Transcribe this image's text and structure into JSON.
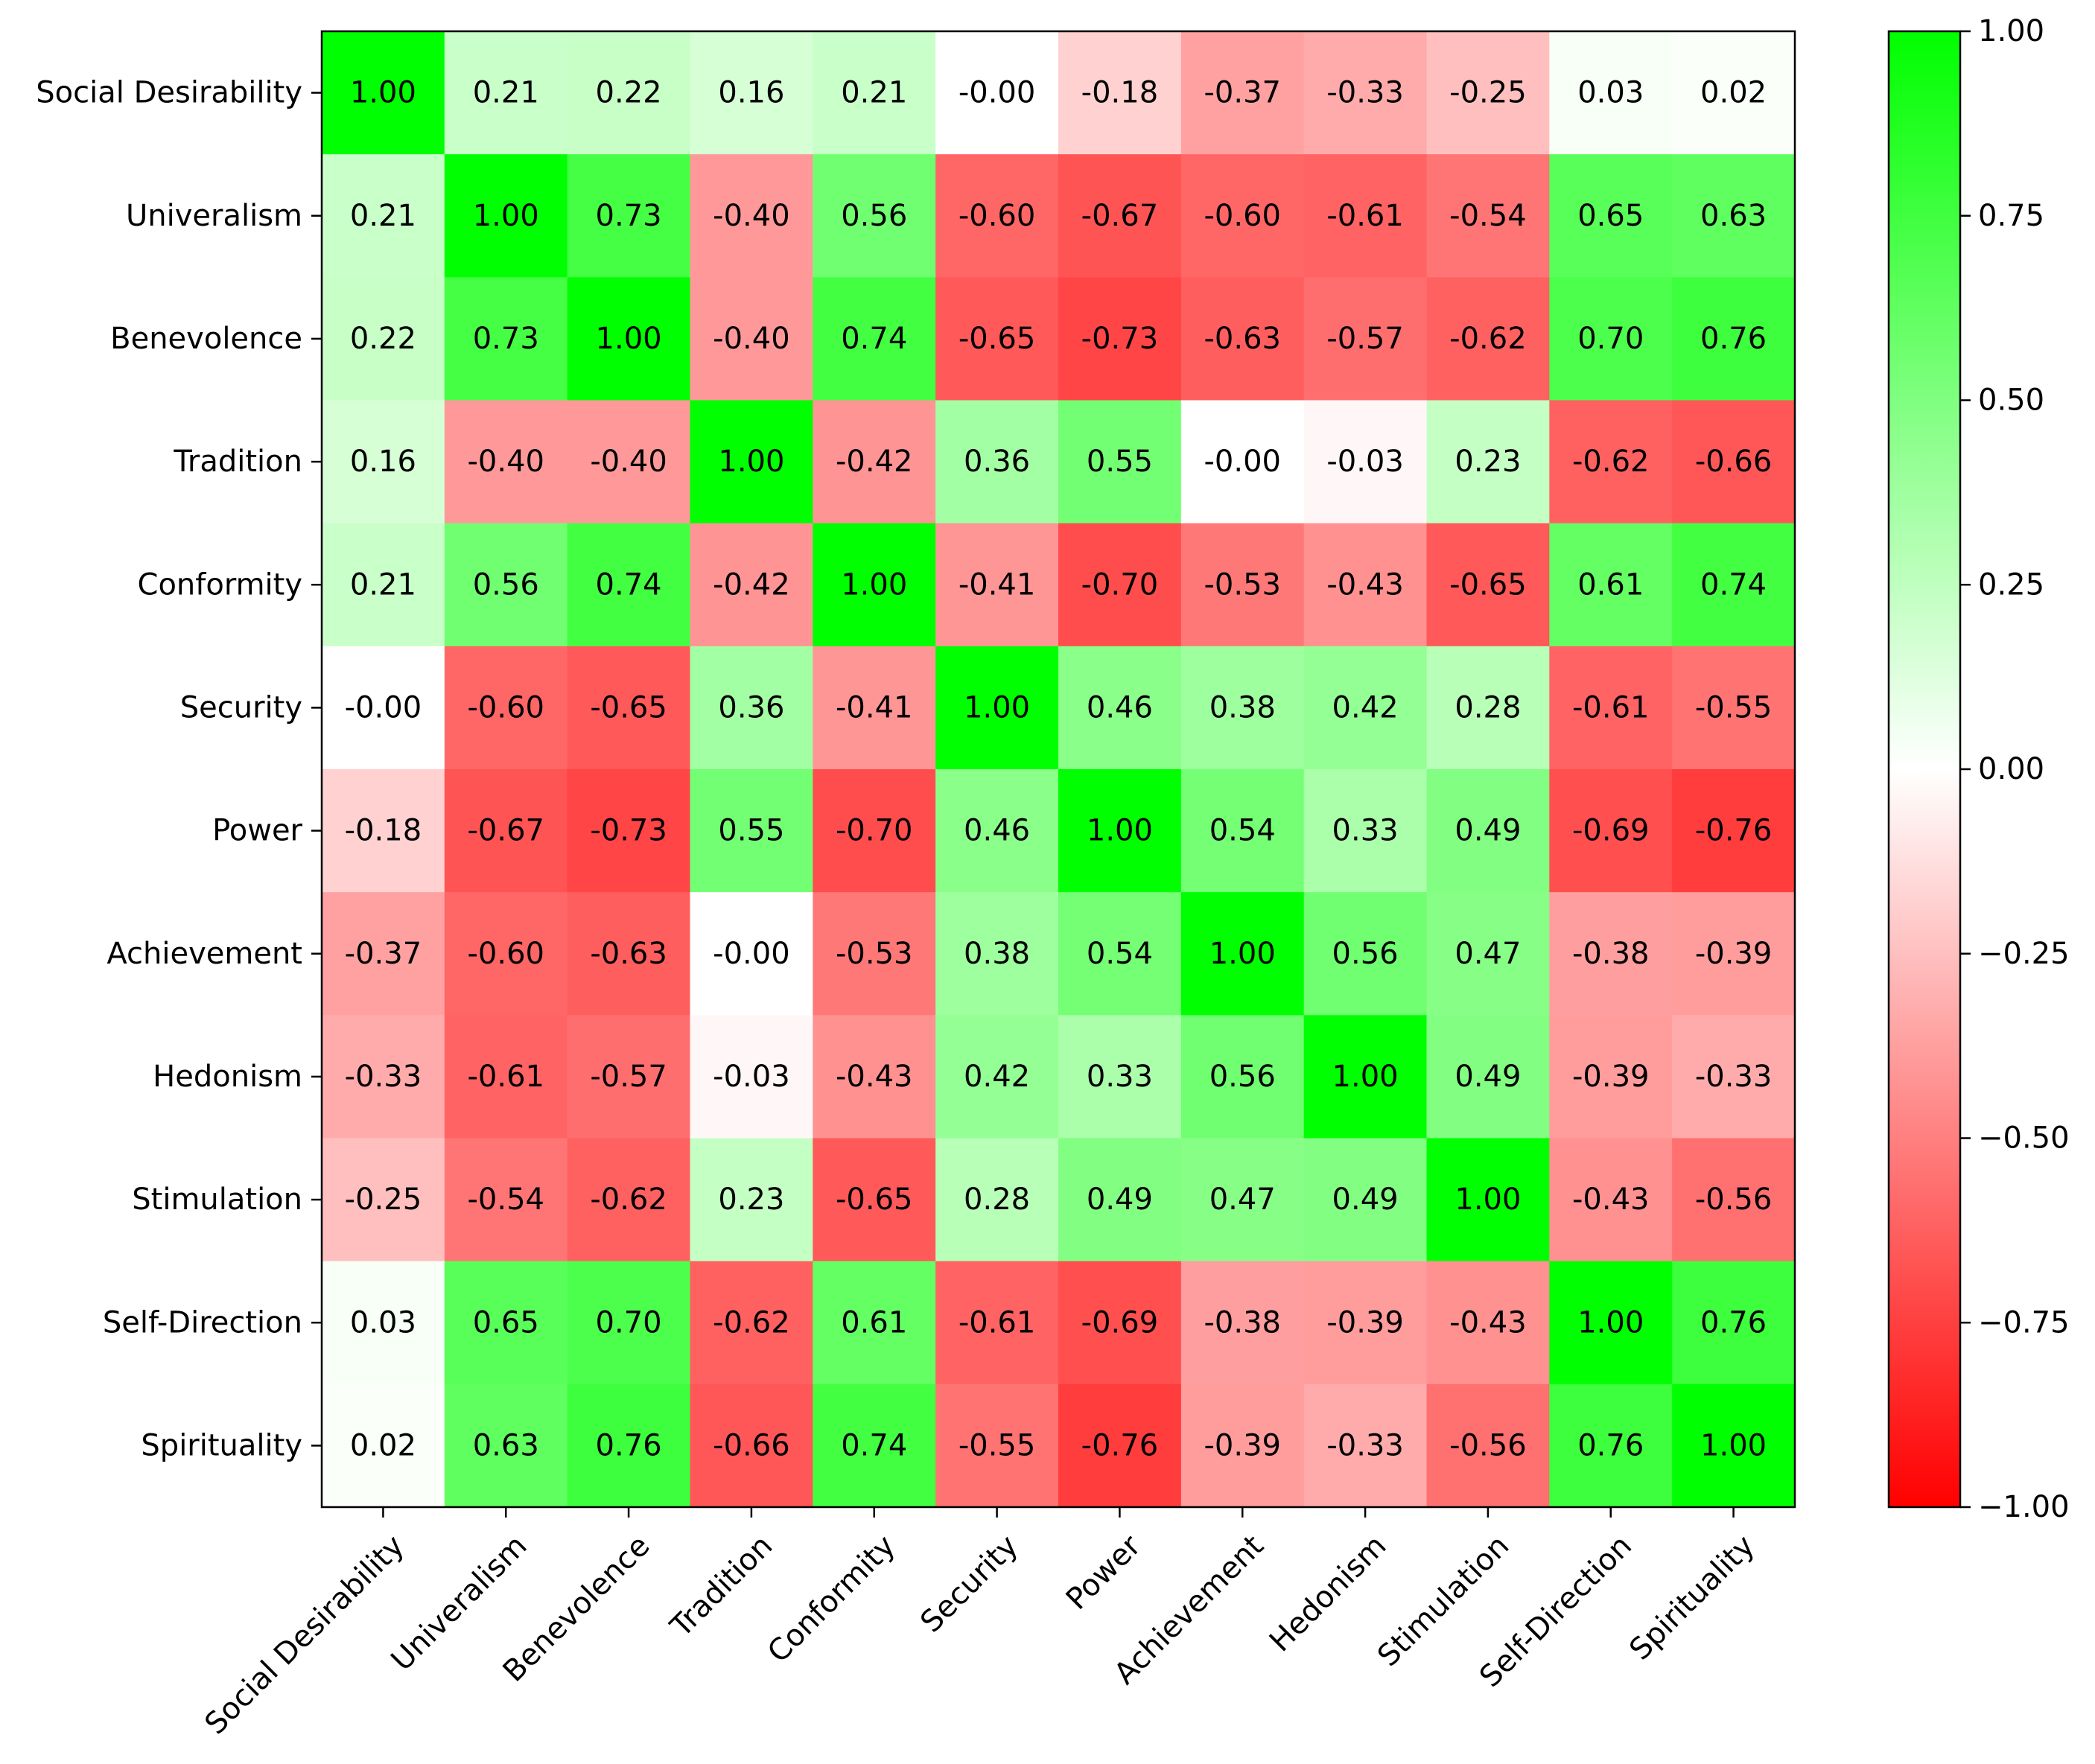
{
  "chart_data": {
    "type": "heatmap",
    "title": "",
    "xlabel": "",
    "ylabel": "",
    "row_labels": [
      "Social Desirability",
      "Univeralism",
      "Benevolence",
      "Tradition",
      "Conformity",
      "Security",
      "Power",
      "Achievement",
      "Hedonism",
      "Stimulation",
      "Self-Direction",
      "Spirituality"
    ],
    "col_labels": [
      "Social Desirability",
      "Univeralism",
      "Benevolence",
      "Tradition",
      "Conformity",
      "Security",
      "Power",
      "Achievement",
      "Hedonism",
      "Stimulation",
      "Self-Direction",
      "Spirituality"
    ],
    "values": [
      [
        1.0,
        0.21,
        0.22,
        0.16,
        0.21,
        -0.0,
        -0.18,
        -0.37,
        -0.33,
        -0.25,
        0.03,
        0.02
      ],
      [
        0.21,
        1.0,
        0.73,
        -0.4,
        0.56,
        -0.6,
        -0.67,
        -0.6,
        -0.61,
        -0.54,
        0.65,
        0.63
      ],
      [
        0.22,
        0.73,
        1.0,
        -0.4,
        0.74,
        -0.65,
        -0.73,
        -0.63,
        -0.57,
        -0.62,
        0.7,
        0.76
      ],
      [
        0.16,
        -0.4,
        -0.4,
        1.0,
        -0.42,
        0.36,
        0.55,
        -0.0,
        -0.03,
        0.23,
        -0.62,
        -0.66
      ],
      [
        0.21,
        0.56,
        0.74,
        -0.42,
        1.0,
        -0.41,
        -0.7,
        -0.53,
        -0.43,
        -0.65,
        0.61,
        0.74
      ],
      [
        -0.0,
        -0.6,
        -0.65,
        0.36,
        -0.41,
        1.0,
        0.46,
        0.38,
        0.42,
        0.28,
        -0.61,
        -0.55
      ],
      [
        -0.18,
        -0.67,
        -0.73,
        0.55,
        -0.7,
        0.46,
        1.0,
        0.54,
        0.33,
        0.49,
        -0.69,
        -0.76
      ],
      [
        -0.37,
        -0.6,
        -0.63,
        -0.0,
        -0.53,
        0.38,
        0.54,
        1.0,
        0.56,
        0.47,
        -0.38,
        -0.39
      ],
      [
        -0.33,
        -0.61,
        -0.57,
        -0.03,
        -0.43,
        0.42,
        0.33,
        0.56,
        1.0,
        0.49,
        -0.39,
        -0.33
      ],
      [
        -0.25,
        -0.54,
        -0.62,
        0.23,
        -0.65,
        0.28,
        0.49,
        0.47,
        0.49,
        1.0,
        -0.43,
        -0.56
      ],
      [
        0.03,
        0.65,
        0.7,
        -0.62,
        0.61,
        -0.61,
        -0.69,
        -0.38,
        -0.39,
        -0.43,
        1.0,
        0.76
      ],
      [
        0.02,
        0.63,
        0.76,
        -0.66,
        0.74,
        -0.55,
        -0.76,
        -0.39,
        -0.33,
        -0.56,
        0.76,
        1.0
      ]
    ],
    "cell_labels": [
      [
        "1.00",
        "0.21",
        "0.22",
        "0.16",
        "0.21",
        "-0.00",
        "-0.18",
        "-0.37",
        "-0.33",
        "-0.25",
        "0.03",
        "0.02"
      ],
      [
        "0.21",
        "1.00",
        "0.73",
        "-0.40",
        "0.56",
        "-0.60",
        "-0.67",
        "-0.60",
        "-0.61",
        "-0.54",
        "0.65",
        "0.63"
      ],
      [
        "0.22",
        "0.73",
        "1.00",
        "-0.40",
        "0.74",
        "-0.65",
        "-0.73",
        "-0.63",
        "-0.57",
        "-0.62",
        "0.70",
        "0.76"
      ],
      [
        "0.16",
        "-0.40",
        "-0.40",
        "1.00",
        "-0.42",
        "0.36",
        "0.55",
        "-0.00",
        "-0.03",
        "0.23",
        "-0.62",
        "-0.66"
      ],
      [
        "0.21",
        "0.56",
        "0.74",
        "-0.42",
        "1.00",
        "-0.41",
        "-0.70",
        "-0.53",
        "-0.43",
        "-0.65",
        "0.61",
        "0.74"
      ],
      [
        "-0.00",
        "-0.60",
        "-0.65",
        "0.36",
        "-0.41",
        "1.00",
        "0.46",
        "0.38",
        "0.42",
        "0.28",
        "-0.61",
        "-0.55"
      ],
      [
        "-0.18",
        "-0.67",
        "-0.73",
        "0.55",
        "-0.70",
        "0.46",
        "1.00",
        "0.54",
        "0.33",
        "0.49",
        "-0.69",
        "-0.76"
      ],
      [
        "-0.37",
        "-0.60",
        "-0.63",
        "-0.00",
        "-0.53",
        "0.38",
        "0.54",
        "1.00",
        "0.56",
        "0.47",
        "-0.38",
        "-0.39"
      ],
      [
        "-0.33",
        "-0.61",
        "-0.57",
        "-0.03",
        "-0.43",
        "0.42",
        "0.33",
        "0.56",
        "1.00",
        "0.49",
        "-0.39",
        "-0.33"
      ],
      [
        "-0.25",
        "-0.54",
        "-0.62",
        "0.23",
        "-0.65",
        "0.28",
        "0.49",
        "0.47",
        "0.49",
        "1.00",
        "-0.43",
        "-0.56"
      ],
      [
        "0.03",
        "0.65",
        "0.70",
        "-0.62",
        "0.61",
        "-0.61",
        "-0.69",
        "-0.38",
        "-0.39",
        "-0.43",
        "1.00",
        "0.76"
      ],
      [
        "0.02",
        "0.63",
        "0.76",
        "-0.66",
        "0.74",
        "-0.55",
        "-0.76",
        "-0.39",
        "-0.33",
        "-0.56",
        "0.76",
        "1.00"
      ]
    ],
    "colorbar": {
      "range": [
        -1.0,
        1.0
      ],
      "ticks": [
        1.0,
        0.75,
        0.5,
        0.25,
        0.0,
        -0.25,
        -0.5,
        -0.75,
        -1.0
      ],
      "tick_labels": [
        "1.00",
        "0.75",
        "0.50",
        "0.25",
        "0.00",
        "−0.25",
        "−0.50",
        "−0.75",
        "−1.00"
      ],
      "colors": {
        "low": "#ff0000",
        "mid": "#ffffff",
        "high": "#00ff00"
      }
    },
    "grid": false
  }
}
